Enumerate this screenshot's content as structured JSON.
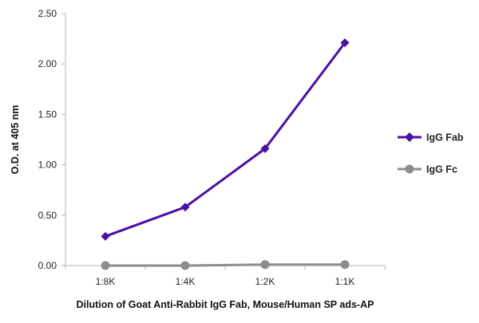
{
  "chart_data": {
    "type": "line",
    "title": "",
    "xlabel": "Dilution of Goat Anti-Rabbit IgG Fab, Mouse/Human SP ads-AP",
    "ylabel": "O.D. at 405 nm",
    "categories": [
      "1:8K",
      "1:4K",
      "1:2K",
      "1:1K"
    ],
    "ylim": [
      0,
      2.5
    ],
    "yticks": [
      "0.00",
      "0.50",
      "1.00",
      "1.50",
      "2.00",
      "2.50"
    ],
    "grid": false,
    "legend": "right",
    "series": [
      {
        "name": "IgG Fab",
        "values": [
          0.29,
          0.58,
          1.16,
          2.21
        ],
        "color": "#4b0fa6",
        "marker": "diamond"
      },
      {
        "name": "IgG Fc",
        "values": [
          0.0,
          0.0,
          0.01,
          0.01
        ],
        "color": "#8c8c8c",
        "marker": "circle"
      }
    ]
  }
}
